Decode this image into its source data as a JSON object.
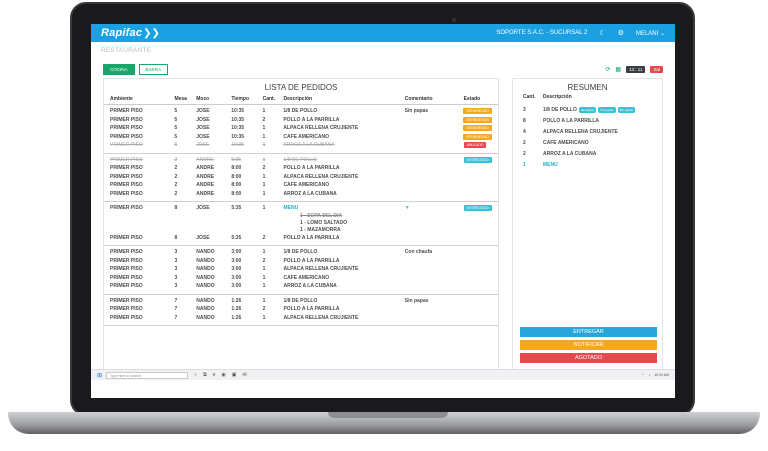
{
  "app": {
    "logo": "Rapifac",
    "company": "SOPORTE S.A.C. - SUCURSAL 2",
    "user": "MELANI"
  },
  "section_title": "RESTAURANTE",
  "tabs": [
    {
      "label": "COCINA",
      "active": true
    },
    {
      "label": "BARRA",
      "active": false
    }
  ],
  "toolbar": {
    "time": "13 : 11",
    "stop_label": "Sal"
  },
  "orders": {
    "title": "LISTA DE PEDIDOS",
    "columns": [
      "Ambiente",
      "Mesa",
      "Mozo",
      "Tiempo",
      "Cant.",
      "Descripción",
      "Comentario",
      "Estado"
    ],
    "groups": [
      {
        "rows": [
          {
            "ambiente": "PRIMER PISO",
            "mesa": "5",
            "mozo": "JOSE",
            "tiempo": "10:35",
            "cant": "1",
            "desc": "1/8 DE POLLO",
            "comentario": "Sin papas",
            "estado": "ATENDIENDO",
            "estado_color": "orange",
            "strike": false
          },
          {
            "ambiente": "PRIMER PISO",
            "mesa": "5",
            "mozo": "JOSE",
            "tiempo": "10:35",
            "cant": "2",
            "desc": "POLLO A LA PARRILLA",
            "comentario": "",
            "estado": "ATENDIENDO",
            "estado_color": "orange",
            "strike": false
          },
          {
            "ambiente": "PRIMER PISO",
            "mesa": "5",
            "mozo": "JOSE",
            "tiempo": "10:35",
            "cant": "1",
            "desc": "ALPACA RELLENA CRUJIENTE",
            "comentario": "",
            "estado": "ATENDIENDO",
            "estado_color": "orange",
            "strike": false
          },
          {
            "ambiente": "PRIMER PISO",
            "mesa": "5",
            "mozo": "JOSE",
            "tiempo": "10:35",
            "cant": "1",
            "desc": "CAFE AMERICANO",
            "comentario": "",
            "estado": "ATENDIENDO",
            "estado_color": "orange",
            "strike": false
          },
          {
            "ambiente": "PRIMER PISO",
            "mesa": "5",
            "mozo": "JOSE",
            "tiempo": "10:35",
            "cant": "1",
            "desc": "ARROZ A LA CUBANA",
            "comentario": "",
            "estado": "ANULADO",
            "estado_color": "red",
            "strike": true
          }
        ]
      },
      {
        "rows": [
          {
            "ambiente": "PRIMER PISO",
            "mesa": "2",
            "mozo": "ANDRE",
            "tiempo": "5:35",
            "cant": "1",
            "desc": "1/8 DE POLLO",
            "comentario": "",
            "estado": "ENTREGADO",
            "estado_color": "blue",
            "strike": true
          },
          {
            "ambiente": "PRIMER PISO",
            "mesa": "2",
            "mozo": "ANDRE",
            "tiempo": "8:00",
            "cant": "2",
            "desc": "POLLO A LA PARRILLA",
            "comentario": "",
            "estado": "",
            "estado_color": "",
            "strike": false
          },
          {
            "ambiente": "PRIMER PISO",
            "mesa": "2",
            "mozo": "ANDRE",
            "tiempo": "8:00",
            "cant": "1",
            "desc": "ALPACA RELLENA CRUJIENTE",
            "comentario": "",
            "estado": "",
            "estado_color": "",
            "strike": false
          },
          {
            "ambiente": "PRIMER PISO",
            "mesa": "2",
            "mozo": "ANDRE",
            "tiempo": "8:00",
            "cant": "1",
            "desc": "CAFE AMERICANO",
            "comentario": "",
            "estado": "",
            "estado_color": "",
            "strike": false
          },
          {
            "ambiente": "PRIMER PISO",
            "mesa": "2",
            "mozo": "ANDRE",
            "tiempo": "8:00",
            "cant": "1",
            "desc": "ARROZ A LA CUBANA",
            "comentario": "",
            "estado": "",
            "estado_color": "",
            "strike": false
          }
        ]
      },
      {
        "menu_row": {
          "ambiente": "PRIMER PISO",
          "mesa": "8",
          "mozo": "JOSE",
          "tiempo": "5:35",
          "cant": "1",
          "desc": "MENU",
          "estado": "ENTREGADO"
        },
        "menu_items": [
          {
            "text": "1 - SOPA DEL DIA",
            "strike": true
          },
          {
            "text": "1 - LOMO SALTADO",
            "strike": false
          },
          {
            "text": "1 - MAZAMORRA",
            "strike": false
          }
        ],
        "rows": [
          {
            "ambiente": "PRIMER PISO",
            "mesa": "8",
            "mozo": "JOSE",
            "tiempo": "5:35",
            "cant": "2",
            "desc": "POLLO A LA PARRILLA",
            "comentario": "",
            "estado": "",
            "estado_color": "",
            "strike": false
          }
        ]
      },
      {
        "rows": [
          {
            "ambiente": "PRIMER PISO",
            "mesa": "3",
            "mozo": "NANDO",
            "tiempo": "3:00",
            "cant": "1",
            "desc": "1/8 DE POLLO",
            "comentario": "Con chaufa",
            "estado": "",
            "estado_color": "",
            "strike": false
          },
          {
            "ambiente": "PRIMER PISO",
            "mesa": "3",
            "mozo": "NANDO",
            "tiempo": "3:00",
            "cant": "2",
            "desc": "POLLO A LA PARRILLA",
            "comentario": "",
            "estado": "",
            "estado_color": "",
            "strike": false
          },
          {
            "ambiente": "PRIMER PISO",
            "mesa": "3",
            "mozo": "NANDO",
            "tiempo": "3:00",
            "cant": "1",
            "desc": "ALPACA RELLENA CRUJIENTE",
            "comentario": "",
            "estado": "",
            "estado_color": "",
            "strike": false
          },
          {
            "ambiente": "PRIMER PISO",
            "mesa": "3",
            "mozo": "NANDO",
            "tiempo": "3:00",
            "cant": "1",
            "desc": "CAFE AMERICANO",
            "comentario": "",
            "estado": "",
            "estado_color": "",
            "strike": false
          },
          {
            "ambiente": "PRIMER PISO",
            "mesa": "3",
            "mozo": "NANDO",
            "tiempo": "3:00",
            "cant": "1",
            "desc": "ARROZ A LA CUBANA",
            "comentario": "",
            "estado": "",
            "estado_color": "",
            "strike": false
          }
        ]
      },
      {
        "rows": [
          {
            "ambiente": "PRIMER PISO",
            "mesa": "7",
            "mozo": "NANDO",
            "tiempo": "1:26",
            "cant": "1",
            "desc": "1/8 DE POLLO",
            "comentario": "Sin papas",
            "estado": "",
            "estado_color": "",
            "strike": false
          },
          {
            "ambiente": "PRIMER PISO",
            "mesa": "7",
            "mozo": "NANDO",
            "tiempo": "1:26",
            "cant": "2",
            "desc": "POLLO A LA PARRILLA",
            "comentario": "",
            "estado": "",
            "estado_color": "",
            "strike": false
          },
          {
            "ambiente": "PRIMER PISO",
            "mesa": "7",
            "mozo": "NANDO",
            "tiempo": "1:26",
            "cant": "1",
            "desc": "ALPACA RELLENA CRUJIENTE",
            "comentario": "",
            "estado": "",
            "estado_color": "",
            "strike": false
          }
        ]
      }
    ]
  },
  "resumen": {
    "title": "RESUMEN",
    "head_cant": "Cant.",
    "head_desc": "Descripción",
    "items": [
      {
        "cant": "3",
        "desc": "1/8 DE POLLO",
        "chips": [
          "Sin papas",
          "Sin papas",
          "Sin papas"
        ],
        "teal": false
      },
      {
        "cant": "8",
        "desc": "POLLO A LA PARRILLA",
        "chips": [],
        "teal": false
      },
      {
        "cant": "4",
        "desc": "ALPACA RELLENA CRUJIENTE",
        "chips": [],
        "teal": false
      },
      {
        "cant": "2",
        "desc": "CAFE AMERICANO",
        "chips": [],
        "teal": false
      },
      {
        "cant": "2",
        "desc": "ARROZ A LA CUBANA",
        "chips": [],
        "teal": false
      },
      {
        "cant": "1",
        "desc": "MENU",
        "chips": [],
        "teal": true
      }
    ],
    "buttons": {
      "entregar": "ENTREGAR",
      "notificar": "NOTIFICAR",
      "agotado": "AGOTADO"
    }
  },
  "taskbar": {
    "search_placeholder": "Type here to search",
    "clock": "10:00 AM"
  },
  "colors": {
    "brand": "#1ba1e2",
    "green": "#18a66a",
    "orange": "#f5a623",
    "red": "#e5484d",
    "teal": "#36c3d8"
  }
}
